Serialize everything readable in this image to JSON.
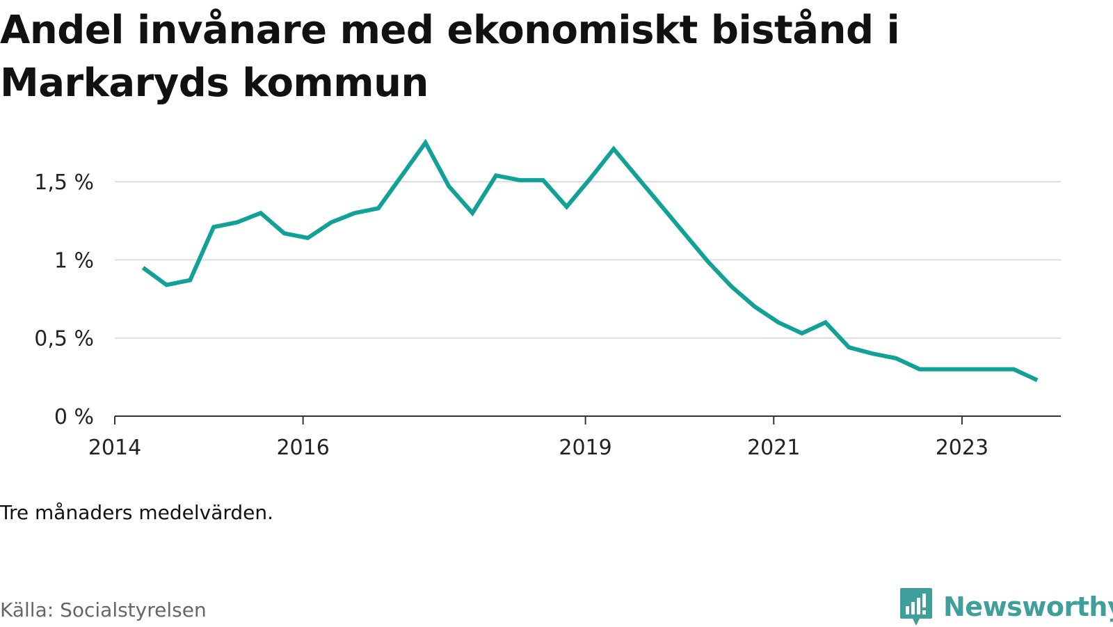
{
  "title": "Andel invånare med ekonomiskt bistånd i Markaryds kommun",
  "note": "Tre månaders medelvärden.",
  "source": "Källa: Socialstyrelsen",
  "brand": {
    "name": "Newsworthy",
    "icon": "newsworthy-logo-icon",
    "color": "#3f9f9a"
  },
  "chart_data": {
    "type": "line",
    "title": "Andel invånare med ekonomiskt bistånd i Markaryds kommun",
    "xlabel": "",
    "ylabel": "",
    "ylim": [
      0,
      1.75
    ],
    "xlim": [
      2014.0,
      2024.05
    ],
    "grid": true,
    "legend": "none",
    "line_color": "#12a196",
    "yticks": [
      {
        "value": 0,
        "label": "0 %"
      },
      {
        "value": 0.5,
        "label": "0,5 %"
      },
      {
        "value": 1,
        "label": "1 %"
      },
      {
        "value": 1.5,
        "label": "1,5 %"
      }
    ],
    "xticks": [
      {
        "value": 2014,
        "label": "2014"
      },
      {
        "value": 2016,
        "label": "2016"
      },
      {
        "value": 2019,
        "label": "2019"
      },
      {
        "value": 2021,
        "label": "2021"
      },
      {
        "value": 2023,
        "label": "2023"
      }
    ],
    "series": [
      {
        "x": [
          2014.3,
          2014.55,
          2014.8,
          2015.05,
          2015.3,
          2015.55,
          2015.8,
          2016.05,
          2016.3,
          2016.55,
          2016.8,
          2017.05,
          2017.3,
          2017.55,
          2017.8,
          2018.05,
          2018.3,
          2018.55,
          2018.8,
          2019.05,
          2019.3,
          2019.55,
          2019.8,
          2020.05,
          2020.3,
          2020.55,
          2020.8,
          2021.05,
          2021.3,
          2021.55,
          2021.8,
          2022.05,
          2022.3,
          2022.55,
          2022.8,
          2023.05,
          2023.3,
          2023.55,
          2023.8
        ],
        "values": [
          0.95,
          0.84,
          0.87,
          1.21,
          1.24,
          1.3,
          1.17,
          1.14,
          1.24,
          1.3,
          1.33,
          1.54,
          1.75,
          1.47,
          1.3,
          1.54,
          1.51,
          1.51,
          1.34,
          1.52,
          1.71,
          1.53,
          1.35,
          1.17,
          0.99,
          0.83,
          0.7,
          0.6,
          0.53,
          0.6,
          0.44,
          0.4,
          0.37,
          0.3,
          0.3,
          0.3,
          0.3,
          0.3,
          0.23
        ]
      }
    ]
  }
}
